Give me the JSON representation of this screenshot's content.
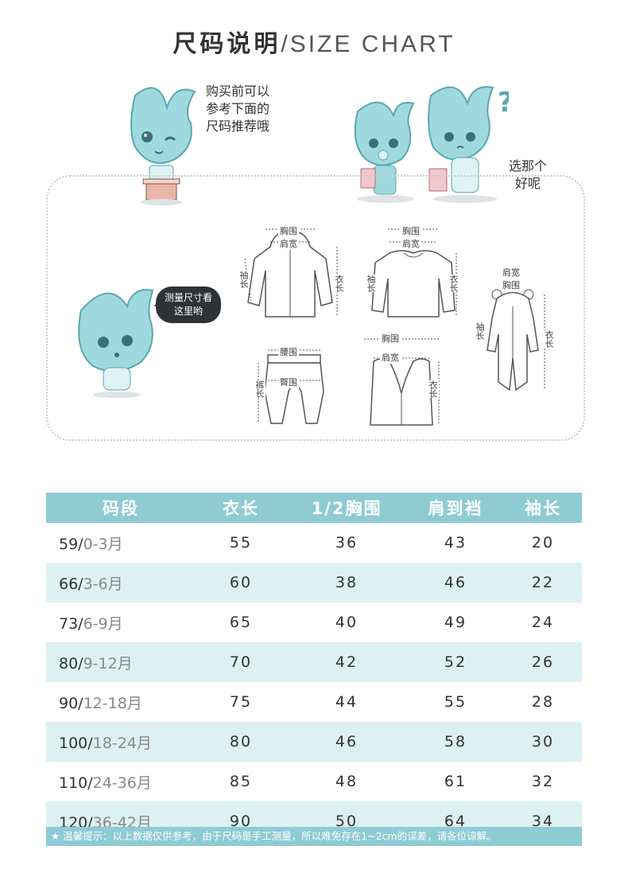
{
  "title": {
    "cn": "尺码说明",
    "en": "/SIZE CHART"
  },
  "bubbles": {
    "left_lines": [
      "购买前可以",
      "参考下面的",
      "尺码推荐哦"
    ],
    "right_lines": [
      "选那个",
      "好呢"
    ],
    "speech_lines": [
      "测量尺寸看",
      "这里哟"
    ]
  },
  "garment_labels": {
    "jacket": {
      "chest": "胸围",
      "shoulder": "肩宽",
      "sleeve": "袖长",
      "length": "衣长"
    },
    "sweater": {
      "chest": "胸围",
      "shoulder": "肩宽",
      "sleeve": "袖长",
      "length": "衣长"
    },
    "romper": {
      "shoulder": "肩宽",
      "chest": "胸围",
      "sleeve": "袖长",
      "length": "衣长"
    },
    "pants": {
      "waist": "腰围",
      "hip": "臀围",
      "length": "裤长"
    },
    "vest": {
      "chest": "胸围",
      "shoulder": "肩宽",
      "length": "衣长"
    }
  },
  "table": {
    "headers": [
      "码段",
      "衣长",
      "1/2胸围",
      "肩到裆",
      "袖长"
    ],
    "rows": [
      {
        "code": "59/",
        "age": "0-3月",
        "length": "55",
        "chest": "36",
        "shoulder_crotch": "43",
        "sleeve": "20"
      },
      {
        "code": "66/",
        "age": "3-6月",
        "length": "60",
        "chest": "38",
        "shoulder_crotch": "46",
        "sleeve": "22"
      },
      {
        "code": "73/",
        "age": "6-9月",
        "length": "65",
        "chest": "40",
        "shoulder_crotch": "49",
        "sleeve": "24"
      },
      {
        "code": "80/",
        "age": "9-12月",
        "length": "70",
        "chest": "42",
        "shoulder_crotch": "52",
        "sleeve": "26"
      },
      {
        "code": "90/",
        "age": "12-18月",
        "length": "75",
        "chest": "44",
        "shoulder_crotch": "55",
        "sleeve": "28"
      },
      {
        "code": "100/",
        "age": "18-24月",
        "length": "80",
        "chest": "46",
        "shoulder_crotch": "58",
        "sleeve": "30"
      },
      {
        "code": "110/",
        "age": "24-36月",
        "length": "85",
        "chest": "48",
        "shoulder_crotch": "61",
        "sleeve": "32"
      },
      {
        "code": "120/",
        "age": "36-42月",
        "length": "90",
        "chest": "50",
        "shoulder_crotch": "64",
        "sleeve": "34"
      }
    ]
  },
  "note": "★ 温馨提示：以上数据仅供参考，由于尺码是手工测量，所以难免存在1~2cm的误差，请各位谅解。",
  "colors": {
    "header": "#8ecbd3",
    "alt_row": "#ddf1f3",
    "mascot": "#9fd9de"
  }
}
